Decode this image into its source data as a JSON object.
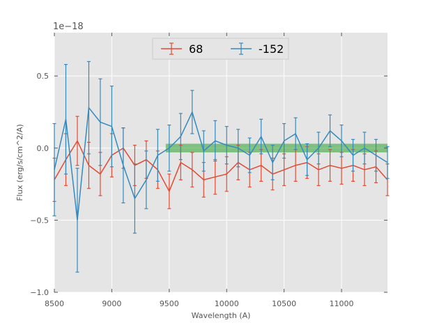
{
  "chart_data": {
    "type": "line",
    "title": "",
    "xlabel": "Wavelength (A)",
    "ylabel": "Flux (erg/s/cm^2/A)",
    "y_offset_label": "1e−18",
    "y_unit_scale": 1e-18,
    "xlim": [
      8500,
      11400
    ],
    "ylim": [
      -1.0,
      0.8
    ],
    "x_ticks": [
      8500,
      9000,
      9500,
      10000,
      10500,
      11000
    ],
    "x_tick_labels": [
      "8500",
      "9000",
      "9500",
      "10000",
      "10500",
      "11000"
    ],
    "y_ticks": [
      -1.0,
      -0.5,
      0.0,
      0.5
    ],
    "y_tick_labels": [
      "−1.0",
      "−0.5",
      "0.0",
      "0.5"
    ],
    "grid": true,
    "legend_position": "top-center",
    "background_color": "#e5e5e5",
    "band": {
      "x_start": 9470,
      "x_end": 11400,
      "y_low": -0.03,
      "y_high": 0.03,
      "color": "#2ca02c"
    },
    "series": [
      {
        "name": "68",
        "color": "#e24a33",
        "x": [
          8500,
          8600,
          8700,
          8800,
          8900,
          9000,
          9100,
          9200,
          9300,
          9400,
          9500,
          9600,
          9700,
          9800,
          9900,
          10000,
          10100,
          10200,
          10300,
          10400,
          10500,
          10600,
          10700,
          10800,
          10900,
          11000,
          11100,
          11200,
          11300,
          11400
        ],
        "y": [
          -0.22,
          -0.08,
          0.05,
          -0.12,
          -0.18,
          -0.05,
          0.0,
          -0.12,
          -0.08,
          -0.15,
          -0.3,
          -0.1,
          -0.15,
          -0.22,
          -0.2,
          -0.18,
          -0.1,
          -0.15,
          -0.12,
          -0.18,
          -0.15,
          -0.12,
          -0.1,
          -0.15,
          -0.12,
          -0.14,
          -0.12,
          -0.15,
          -0.13,
          -0.22
        ],
        "err": [
          0.15,
          0.18,
          0.17,
          0.16,
          0.15,
          0.15,
          0.14,
          0.14,
          0.13,
          0.13,
          0.12,
          0.12,
          0.12,
          0.12,
          0.12,
          0.12,
          0.12,
          0.12,
          0.11,
          0.11,
          0.11,
          0.11,
          0.11,
          0.11,
          0.11,
          0.11,
          0.11,
          0.11,
          0.11,
          0.11
        ]
      },
      {
        "name": "-152",
        "color": "#348abd",
        "x": [
          8500,
          8600,
          8700,
          8800,
          8900,
          9000,
          9100,
          9200,
          9300,
          9400,
          9500,
          9600,
          9700,
          9800,
          9900,
          10000,
          10100,
          10200,
          10300,
          10400,
          10500,
          10600,
          10700,
          10800,
          10900,
          11000,
          11100,
          11200,
          11300,
          11400
        ],
        "y": [
          -0.15,
          0.2,
          -0.5,
          0.28,
          0.18,
          0.15,
          -0.12,
          -0.35,
          -0.22,
          -0.05,
          0.0,
          0.08,
          0.25,
          -0.02,
          0.05,
          0.02,
          0.0,
          -0.05,
          0.08,
          -0.1,
          0.05,
          0.1,
          -0.08,
          0.0,
          0.12,
          0.05,
          -0.05,
          0.0,
          -0.05,
          -0.1
        ],
        "err": [
          0.32,
          0.38,
          0.36,
          0.32,
          0.3,
          0.28,
          0.26,
          0.24,
          0.2,
          0.18,
          0.16,
          0.16,
          0.15,
          0.14,
          0.14,
          0.13,
          0.13,
          0.12,
          0.12,
          0.12,
          0.12,
          0.11,
          0.11,
          0.11,
          0.11,
          0.11,
          0.11,
          0.11,
          0.11,
          0.11
        ]
      }
    ]
  }
}
